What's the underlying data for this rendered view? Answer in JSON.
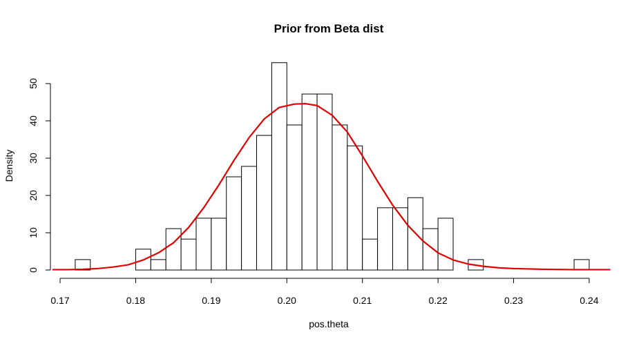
{
  "chart_data": {
    "type": "histogram",
    "title": "Prior from Beta dist",
    "xlabel": "pos.theta",
    "ylabel": "Density",
    "xlim": [
      0.17,
      0.24
    ],
    "ylim": [
      0,
      55.6
    ],
    "x_ticks": [
      "0.17",
      "0.18",
      "0.19",
      "0.20",
      "0.21",
      "0.22",
      "0.23",
      "0.24"
    ],
    "x_tick_values": [
      0.17,
      0.18,
      0.19,
      0.2,
      0.21,
      0.22,
      0.23,
      0.24
    ],
    "y_ticks": [
      "0",
      "10",
      "20",
      "30",
      "40",
      "50"
    ],
    "y_tick_values": [
      0,
      10,
      20,
      30,
      40,
      50
    ],
    "bin_width": 0.002,
    "bins": [
      {
        "x0": 0.172,
        "x1": 0.174,
        "density": 2.8
      },
      {
        "x0": 0.174,
        "x1": 0.176,
        "density": 0
      },
      {
        "x0": 0.176,
        "x1": 0.178,
        "density": 0
      },
      {
        "x0": 0.178,
        "x1": 0.18,
        "density": 0
      },
      {
        "x0": 0.18,
        "x1": 0.182,
        "density": 5.6
      },
      {
        "x0": 0.182,
        "x1": 0.184,
        "density": 2.8
      },
      {
        "x0": 0.184,
        "x1": 0.186,
        "density": 11.1
      },
      {
        "x0": 0.186,
        "x1": 0.188,
        "density": 8.3
      },
      {
        "x0": 0.188,
        "x1": 0.19,
        "density": 13.9
      },
      {
        "x0": 0.19,
        "x1": 0.192,
        "density": 13.9
      },
      {
        "x0": 0.192,
        "x1": 0.194,
        "density": 25.0
      },
      {
        "x0": 0.194,
        "x1": 0.196,
        "density": 27.8
      },
      {
        "x0": 0.196,
        "x1": 0.198,
        "density": 36.1
      },
      {
        "x0": 0.198,
        "x1": 0.2,
        "density": 55.6
      },
      {
        "x0": 0.2,
        "x1": 0.202,
        "density": 38.9
      },
      {
        "x0": 0.202,
        "x1": 0.204,
        "density": 47.2
      },
      {
        "x0": 0.204,
        "x1": 0.206,
        "density": 47.2
      },
      {
        "x0": 0.206,
        "x1": 0.208,
        "density": 38.9
      },
      {
        "x0": 0.208,
        "x1": 0.21,
        "density": 33.3
      },
      {
        "x0": 0.21,
        "x1": 0.212,
        "density": 8.3
      },
      {
        "x0": 0.212,
        "x1": 0.214,
        "density": 16.7
      },
      {
        "x0": 0.214,
        "x1": 0.216,
        "density": 16.7
      },
      {
        "x0": 0.216,
        "x1": 0.218,
        "density": 19.4
      },
      {
        "x0": 0.218,
        "x1": 0.22,
        "density": 11.1
      },
      {
        "x0": 0.22,
        "x1": 0.222,
        "density": 13.9
      },
      {
        "x0": 0.222,
        "x1": 0.224,
        "density": 0
      },
      {
        "x0": 0.224,
        "x1": 0.226,
        "density": 2.8
      },
      {
        "x0": 0.226,
        "x1": 0.228,
        "density": 0
      },
      {
        "x0": 0.228,
        "x1": 0.23,
        "density": 0
      },
      {
        "x0": 0.23,
        "x1": 0.232,
        "density": 0
      },
      {
        "x0": 0.232,
        "x1": 0.234,
        "density": 0
      },
      {
        "x0": 0.234,
        "x1": 0.236,
        "density": 0
      },
      {
        "x0": 0.236,
        "x1": 0.238,
        "density": 0
      },
      {
        "x0": 0.238,
        "x1": 0.24,
        "density": 2.8
      }
    ],
    "density_curve": {
      "color": "#e00000",
      "x": [
        0.169,
        0.171,
        0.173,
        0.175,
        0.177,
        0.179,
        0.181,
        0.183,
        0.185,
        0.187,
        0.189,
        0.191,
        0.193,
        0.195,
        0.197,
        0.199,
        0.201,
        0.2025,
        0.204,
        0.206,
        0.208,
        0.21,
        0.212,
        0.214,
        0.216,
        0.218,
        0.22,
        0.222,
        0.224,
        0.226,
        0.228,
        0.23,
        0.232,
        0.234,
        0.236,
        0.238,
        0.24,
        0.2428
      ],
      "y": [
        0.1,
        0.1,
        0.2,
        0.4,
        0.8,
        1.4,
        2.7,
        4.6,
        7.3,
        11.4,
        16.7,
        22.8,
        29.4,
        35.5,
        40.5,
        43.6,
        44.5,
        44.6,
        44.1,
        41.5,
        37.0,
        30.6,
        23.8,
        17.4,
        12.0,
        7.8,
        4.6,
        2.7,
        1.6,
        1.0,
        0.6,
        0.4,
        0.3,
        0.2,
        0.15,
        0.1,
        0.1,
        0.1
      ]
    },
    "grid": false,
    "legend": "none"
  }
}
